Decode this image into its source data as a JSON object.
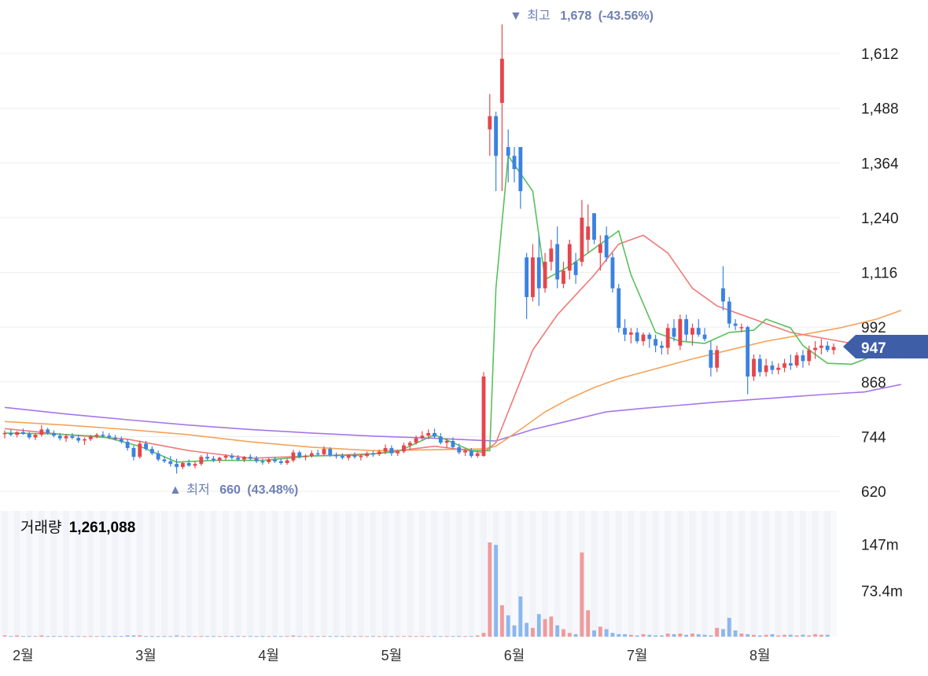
{
  "chart_data": {
    "type": "candlestick",
    "y_ticks": [
      "1,612",
      "1,488",
      "1,364",
      "1,240",
      "1,116",
      "992",
      "868",
      "744",
      "620"
    ],
    "y_tick_values": [
      1612,
      1488,
      1364,
      1240,
      1116,
      992,
      868,
      744,
      620
    ],
    "ylim": [
      600,
      1700
    ],
    "x_ticks": [
      "2월",
      "3월",
      "4월",
      "5월",
      "6월",
      "7월",
      "8월"
    ],
    "high": {
      "arrow": "▼",
      "label": "최고",
      "value": "1,678",
      "pct": "(-43.56%)"
    },
    "low": {
      "arrow": "▲",
      "label": "최저",
      "value": "660",
      "pct": "(43.48%)"
    },
    "current": {
      "label": "947",
      "value": 947
    },
    "volume": {
      "label": "거래량",
      "value": "1,261,088",
      "ticks": [
        "147m",
        "73.4m"
      ],
      "tick_values": [
        147,
        73.4
      ],
      "ylim": [
        0,
        200
      ]
    },
    "colors": {
      "up": "#e5464c",
      "down": "#3b82e0",
      "ma5": "#58c15c",
      "ma20": "#f07a78",
      "ma60": "#f5a35a",
      "ma120": "#a775e8",
      "current_bg": "#3f5ea8",
      "annotation": "#6e7fb5"
    },
    "ohlc": [
      [
        750,
        758,
        740,
        752
      ],
      [
        752,
        760,
        745,
        748
      ],
      [
        748,
        756,
        742,
        754
      ],
      [
        754,
        762,
        748,
        750
      ],
      [
        750,
        755,
        738,
        742
      ],
      [
        742,
        752,
        736,
        748
      ],
      [
        748,
        770,
        744,
        760
      ],
      [
        760,
        764,
        748,
        752
      ],
      [
        752,
        758,
        742,
        746
      ],
      [
        746,
        752,
        735,
        740
      ],
      [
        740,
        750,
        732,
        745
      ],
      [
        745,
        752,
        738,
        741
      ],
      [
        741,
        748,
        730,
        735
      ],
      [
        735,
        742,
        725,
        738
      ],
      [
        738,
        748,
        734,
        744
      ],
      [
        744,
        752,
        740,
        748
      ],
      [
        748,
        756,
        742,
        746
      ],
      [
        746,
        752,
        738,
        742
      ],
      [
        742,
        748,
        735,
        738
      ],
      [
        738,
        744,
        728,
        732
      ],
      [
        732,
        738,
        712,
        718
      ],
      [
        718,
        724,
        690,
        698
      ],
      [
        698,
        735,
        694,
        728
      ],
      [
        728,
        734,
        712,
        716
      ],
      [
        716,
        722,
        702,
        706
      ],
      [
        706,
        712,
        688,
        692
      ],
      [
        692,
        700,
        684,
        688
      ],
      [
        688,
        700,
        676,
        682
      ],
      [
        682,
        694,
        660,
        675
      ],
      [
        675,
        688,
        670,
        684
      ],
      [
        684,
        692,
        676,
        678
      ],
      [
        678,
        688,
        672,
        682
      ],
      [
        682,
        702,
        678,
        698
      ],
      [
        698,
        706,
        690,
        694
      ],
      [
        694,
        700,
        686,
        690
      ],
      [
        690,
        698,
        684,
        696
      ],
      [
        696,
        704,
        690,
        700
      ],
      [
        700,
        706,
        692,
        696
      ],
      [
        696,
        702,
        688,
        692
      ],
      [
        692,
        700,
        686,
        698
      ],
      [
        698,
        704,
        690,
        694
      ],
      [
        694,
        700,
        684,
        688
      ],
      [
        688,
        694,
        680,
        686
      ],
      [
        686,
        696,
        682,
        692
      ],
      [
        692,
        698,
        684,
        688
      ],
      [
        688,
        694,
        680,
        684
      ],
      [
        684,
        694,
        680,
        690
      ],
      [
        690,
        714,
        686,
        708
      ],
      [
        708,
        712,
        694,
        698
      ],
      [
        698,
        704,
        690,
        700
      ],
      [
        700,
        712,
        696,
        706
      ],
      [
        706,
        714,
        700,
        704
      ],
      [
        704,
        722,
        700,
        716
      ],
      [
        716,
        720,
        698,
        702
      ],
      [
        702,
        708,
        694,
        700
      ],
      [
        700,
        706,
        692,
        696
      ],
      [
        696,
        704,
        690,
        702
      ],
      [
        702,
        708,
        694,
        698
      ],
      [
        698,
        704,
        690,
        700
      ],
      [
        700,
        710,
        696,
        706
      ],
      [
        706,
        712,
        698,
        704
      ],
      [
        704,
        714,
        700,
        710
      ],
      [
        710,
        726,
        704,
        718
      ],
      [
        718,
        724,
        700,
        706
      ],
      [
        706,
        714,
        700,
        710
      ],
      [
        710,
        730,
        706,
        724
      ],
      [
        724,
        734,
        714,
        730
      ],
      [
        730,
        746,
        726,
        740
      ],
      [
        740,
        756,
        736,
        746
      ],
      [
        746,
        760,
        738,
        752
      ],
      [
        752,
        762,
        740,
        744
      ],
      [
        744,
        752,
        726,
        730
      ],
      [
        730,
        740,
        718,
        734
      ],
      [
        734,
        742,
        716,
        720
      ],
      [
        720,
        728,
        704,
        708
      ],
      [
        708,
        716,
        700,
        712
      ],
      [
        712,
        718,
        696,
        700
      ],
      [
        700,
        712,
        696,
        706
      ],
      [
        700,
        890,
        698,
        880
      ],
      [
        1440,
        1520,
        1380,
        1470
      ],
      [
        1470,
        1480,
        1300,
        1380
      ],
      [
        1500,
        1678,
        1300,
        1600
      ],
      [
        1400,
        1440,
        1320,
        1380
      ],
      [
        1380,
        1400,
        1320,
        1350
      ],
      [
        1400,
        1400,
        1260,
        1300
      ],
      [
        1150,
        1160,
        1010,
        1060
      ],
      [
        1060,
        1180,
        1050,
        1150
      ],
      [
        1150,
        1200,
        1040,
        1080
      ],
      [
        1080,
        1160,
        1070,
        1140
      ],
      [
        1140,
        1190,
        1120,
        1170
      ],
      [
        1180,
        1220,
        1080,
        1100
      ],
      [
        1090,
        1140,
        1080,
        1120
      ],
      [
        1120,
        1190,
        1100,
        1180
      ],
      [
        1140,
        1160,
        1090,
        1110
      ],
      [
        1140,
        1280,
        1130,
        1240
      ],
      [
        1190,
        1270,
        1160,
        1220
      ],
      [
        1250,
        1250,
        1180,
        1190
      ],
      [
        1160,
        1200,
        1120,
        1180
      ],
      [
        1200,
        1220,
        1140,
        1150
      ],
      [
        1150,
        1160,
        1070,
        1080
      ],
      [
        1080,
        1090,
        980,
        990
      ],
      [
        990,
        1010,
        960,
        975
      ],
      [
        975,
        990,
        955,
        980
      ],
      [
        980,
        990,
        955,
        960
      ],
      [
        960,
        980,
        950,
        975
      ],
      [
        975,
        980,
        945,
        965
      ],
      [
        965,
        975,
        935,
        950
      ],
      [
        950,
        960,
        930,
        945
      ],
      [
        945,
        1000,
        930,
        990
      ],
      [
        990,
        1010,
        960,
        970
      ],
      [
        950,
        1020,
        940,
        1010
      ],
      [
        1010,
        1020,
        960,
        975
      ],
      [
        975,
        1000,
        950,
        990
      ],
      [
        990,
        1010,
        970,
        975
      ],
      [
        975,
        990,
        960,
        965
      ],
      [
        940,
        960,
        880,
        900
      ],
      [
        900,
        950,
        890,
        940
      ],
      [
        1080,
        1130,
        1030,
        1050
      ],
      [
        1050,
        1060,
        990,
        1000
      ],
      [
        1000,
        1010,
        985,
        995
      ],
      [
        990,
        1000,
        980,
        992
      ],
      [
        992,
        995,
        840,
        880
      ],
      [
        880,
        930,
        870,
        920
      ],
      [
        920,
        930,
        880,
        890
      ],
      [
        890,
        920,
        880,
        905
      ],
      [
        905,
        915,
        885,
        895
      ],
      [
        895,
        910,
        885,
        900
      ],
      [
        900,
        920,
        890,
        910
      ],
      [
        910,
        930,
        895,
        905
      ],
      [
        905,
        935,
        900,
        928
      ],
      [
        928,
        940,
        900,
        915
      ],
      [
        915,
        950,
        905,
        940
      ],
      [
        940,
        960,
        920,
        945
      ],
      [
        945,
        965,
        930,
        950
      ],
      [
        950,
        960,
        935,
        940
      ],
      [
        940,
        955,
        930,
        947
      ]
    ],
    "volume_values": [
      2,
      1,
      2,
      1,
      1,
      1,
      2,
      1,
      1,
      1,
      1,
      1,
      1,
      1,
      1,
      1,
      1,
      1,
      1,
      1,
      2,
      2,
      2,
      1,
      1,
      1,
      1,
      1,
      2,
      1,
      1,
      1,
      1,
      1,
      1,
      1,
      1,
      1,
      1,
      1,
      1,
      1,
      1,
      1,
      1,
      1,
      1,
      2,
      1,
      1,
      1,
      1,
      1,
      1,
      1,
      1,
      1,
      1,
      1,
      1,
      1,
      1,
      1,
      1,
      1,
      1,
      1,
      1,
      1,
      1,
      1,
      1,
      1,
      1,
      1,
      1,
      1,
      2,
      6,
      150,
      146,
      50,
      34,
      18,
      64,
      22,
      14,
      36,
      28,
      32,
      18,
      12,
      6,
      4,
      134,
      42,
      10,
      16,
      12,
      6,
      4,
      4,
      3,
      2,
      4,
      3,
      2,
      2,
      5,
      4,
      5,
      3,
      5,
      4,
      3,
      2,
      14,
      12,
      30,
      10,
      5,
      4,
      3,
      2,
      3,
      4,
      2,
      3,
      3,
      2,
      3,
      2,
      4,
      3,
      3
    ],
    "ma5": [
      [
        0,
        752
      ],
      [
        8,
        750
      ],
      [
        16,
        744
      ],
      [
        22,
        722
      ],
      [
        28,
        686
      ],
      [
        34,
        690
      ],
      [
        42,
        690
      ],
      [
        50,
        700
      ],
      [
        58,
        702
      ],
      [
        64,
        710
      ],
      [
        70,
        748
      ],
      [
        76,
        712
      ],
      [
        79,
        712
      ],
      [
        80,
        1080
      ],
      [
        82,
        1380
      ],
      [
        86,
        1300
      ],
      [
        88,
        1100
      ],
      [
        92,
        1130
      ],
      [
        96,
        1170
      ],
      [
        100,
        1210
      ],
      [
        102,
        1110
      ],
      [
        106,
        980
      ],
      [
        110,
        960
      ],
      [
        114,
        955
      ],
      [
        118,
        980
      ],
      [
        122,
        985
      ],
      [
        124,
        1010
      ],
      [
        126,
        1000
      ],
      [
        128,
        990
      ],
      [
        130,
        950
      ],
      [
        134,
        910
      ],
      [
        138,
        908
      ],
      [
        142,
        930
      ],
      [
        146,
        945
      ]
    ],
    "ma20": [
      [
        0,
        762
      ],
      [
        10,
        748
      ],
      [
        20,
        738
      ],
      [
        30,
        712
      ],
      [
        40,
        695
      ],
      [
        50,
        700
      ],
      [
        60,
        705
      ],
      [
        70,
        722
      ],
      [
        78,
        708
      ],
      [
        80,
        730
      ],
      [
        82,
        800
      ],
      [
        86,
        940
      ],
      [
        90,
        1020
      ],
      [
        96,
        1110
      ],
      [
        100,
        1180
      ],
      [
        104,
        1200
      ],
      [
        108,
        1160
      ],
      [
        112,
        1080
      ],
      [
        116,
        1040
      ],
      [
        120,
        1020
      ],
      [
        124,
        1000
      ],
      [
        128,
        980
      ],
      [
        132,
        970
      ],
      [
        136,
        960
      ],
      [
        140,
        950
      ],
      [
        144,
        955
      ],
      [
        146,
        950
      ]
    ],
    "ma60": [
      [
        0,
        778
      ],
      [
        10,
        770
      ],
      [
        20,
        760
      ],
      [
        30,
        748
      ],
      [
        40,
        732
      ],
      [
        50,
        720
      ],
      [
        60,
        712
      ],
      [
        70,
        714
      ],
      [
        78,
        716
      ],
      [
        80,
        722
      ],
      [
        84,
        760
      ],
      [
        88,
        800
      ],
      [
        92,
        830
      ],
      [
        96,
        855
      ],
      [
        100,
        875
      ],
      [
        104,
        890
      ],
      [
        108,
        905
      ],
      [
        112,
        920
      ],
      [
        118,
        940
      ],
      [
        124,
        960
      ],
      [
        130,
        975
      ],
      [
        136,
        990
      ],
      [
        142,
        1010
      ],
      [
        146,
        1030
      ]
    ],
    "ma120": [
      [
        0,
        810
      ],
      [
        10,
        795
      ],
      [
        20,
        782
      ],
      [
        30,
        770
      ],
      [
        40,
        760
      ],
      [
        50,
        752
      ],
      [
        60,
        745
      ],
      [
        70,
        740
      ],
      [
        78,
        735
      ],
      [
        80,
        734
      ],
      [
        86,
        760
      ],
      [
        92,
        780
      ],
      [
        98,
        800
      ],
      [
        104,
        808
      ],
      [
        110,
        815
      ],
      [
        116,
        822
      ],
      [
        122,
        828
      ],
      [
        128,
        834
      ],
      [
        134,
        840
      ],
      [
        140,
        845
      ],
      [
        146,
        862
      ]
    ]
  }
}
